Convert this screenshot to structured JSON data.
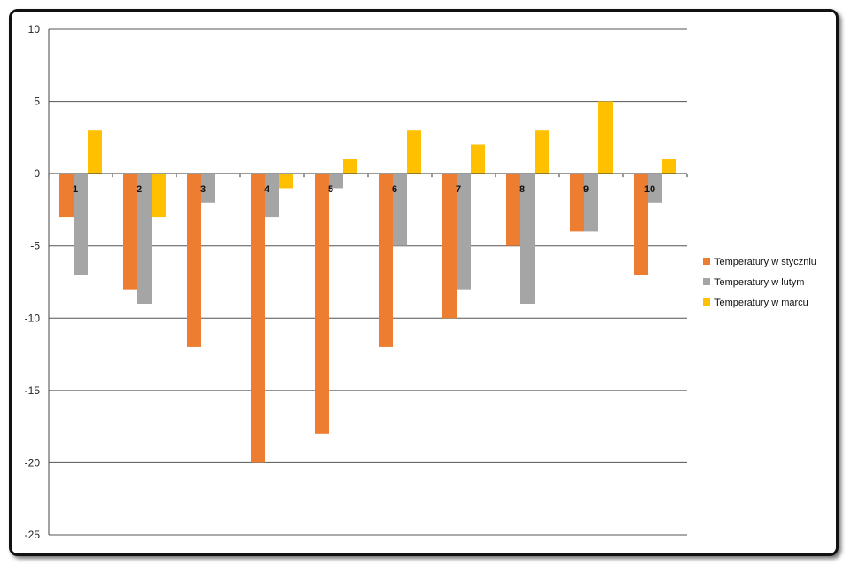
{
  "chart_data": {
    "type": "bar",
    "categories": [
      "1",
      "2",
      "3",
      "4",
      "5",
      "6",
      "7",
      "8",
      "9",
      "10"
    ],
    "series": [
      {
        "name": "Temperatury w styczniu",
        "color": "#ED7D31",
        "values": [
          -3,
          -8,
          -12,
          -20,
          -18,
          -12,
          -10,
          -5,
          -4,
          -7
        ]
      },
      {
        "name": "Temperatury w lutym",
        "color": "#A5A5A5",
        "values": [
          -7,
          -9,
          -2,
          -3,
          -1,
          -5,
          -8,
          -9,
          -4,
          -2
        ]
      },
      {
        "name": "Temperatury w marcu",
        "color": "#FFC000",
        "values": [
          3,
          -3,
          0,
          -1,
          1,
          3,
          2,
          3,
          5,
          1
        ]
      }
    ],
    "yticks": [
      "10",
      "5",
      "0",
      "-5",
      "-10",
      "-15",
      "-20",
      "-25"
    ],
    "ylim": [
      -25,
      10
    ],
    "grid": true,
    "legend": "right"
  }
}
